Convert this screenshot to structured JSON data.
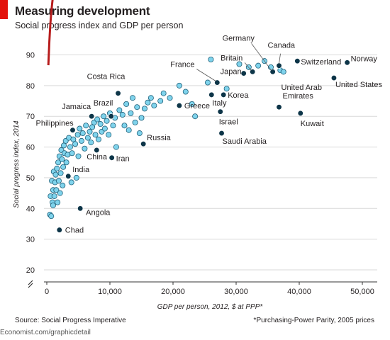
{
  "header": {
    "title": "Measuring development",
    "subtitle": "Social progress index and GDP per person"
  },
  "footer": {
    "source": "Source: Social Progress Imperative",
    "note": "*Purchasing-Power Parity, 2005 prices",
    "site": "Economist.com/graphicdetail"
  },
  "colors": {
    "accent": "#e3120b",
    "trend": "#b71c1c",
    "point_fill": "#7fd3ec",
    "point_stroke": "#1f5f78",
    "highlight": "#0d3548",
    "grid": "#d9d9d9"
  },
  "chart_data": {
    "type": "scatter",
    "xlabel": "GDP per person, 2012, $ at PPP*",
    "ylabel": "Social progress index, 2014",
    "xlim": [
      0,
      52000
    ],
    "ylim": [
      20,
      90
    ],
    "x_ticks": [
      0,
      10000,
      20000,
      30000,
      40000,
      50000
    ],
    "x_tick_labels": [
      "0",
      "10,000",
      "20,000",
      "30,000",
      "40,000",
      "50,000"
    ],
    "y_ticks": [
      20,
      30,
      40,
      50,
      60,
      70,
      80,
      90
    ],
    "y_tick_labels": [
      "20",
      "30",
      "40",
      "50",
      "60",
      "70",
      "80",
      "90"
    ],
    "y_axis_break": true,
    "grid": true,
    "trend": {
      "type": "logarithmic",
      "intercept": -4.5,
      "slope": 38.0
    },
    "labeled_points": [
      {
        "label": "Chad",
        "x": 2000,
        "y": 33
      },
      {
        "label": "Angola",
        "x": 5300,
        "y": 40
      },
      {
        "label": "India",
        "x": 3400,
        "y": 50.5
      },
      {
        "label": "China",
        "x": 7900,
        "y": 59
      },
      {
        "label": "Iran",
        "x": 10300,
        "y": 56.5
      },
      {
        "label": "Philippines",
        "x": 4100,
        "y": 65.5
      },
      {
        "label": "Jamaica",
        "x": 7100,
        "y": 70
      },
      {
        "label": "Brazil",
        "x": 10200,
        "y": 70
      },
      {
        "label": "Costa Rica",
        "x": 11300,
        "y": 77.5
      },
      {
        "label": "Russia",
        "x": 15300,
        "y": 61
      },
      {
        "label": "Greece",
        "x": 21000,
        "y": 73.5
      },
      {
        "label": "France",
        "x": 27000,
        "y": 81
      },
      {
        "label": "Italy",
        "x": 26100,
        "y": 77
      },
      {
        "label": "Korea",
        "x": 28000,
        "y": 77
      },
      {
        "label": "Israel",
        "x": 27500,
        "y": 71.5
      },
      {
        "label": "Saudi Arabia",
        "x": 27700,
        "y": 64.5
      },
      {
        "label": "Japan",
        "x": 31200,
        "y": 84
      },
      {
        "label": "Britain",
        "x": 32600,
        "y": 84.5
      },
      {
        "label": "Germany",
        "x": 35800,
        "y": 84.5
      },
      {
        "label": "Canada",
        "x": 36800,
        "y": 86.5
      },
      {
        "label": "Switzerland",
        "x": 39700,
        "y": 88
      },
      {
        "label": "United Arab Emirates",
        "x": 36800,
        "y": 73
      },
      {
        "label": "Kuwait",
        "x": 40200,
        "y": 71
      },
      {
        "label": "United States",
        "x": 45500,
        "y": 82.5
      },
      {
        "label": "Norway",
        "x": 47600,
        "y": 87.5
      }
    ],
    "points": [
      {
        "x": 500,
        "y": 38
      },
      {
        "x": 600,
        "y": 44
      },
      {
        "x": 700,
        "y": 37.5
      },
      {
        "x": 800,
        "y": 49
      },
      {
        "x": 900,
        "y": 42
      },
      {
        "x": 1000,
        "y": 46
      },
      {
        "x": 1000,
        "y": 41
      },
      {
        "x": 1100,
        "y": 52
      },
      {
        "x": 1200,
        "y": 44
      },
      {
        "x": 1300,
        "y": 48.5
      },
      {
        "x": 1400,
        "y": 51
      },
      {
        "x": 1500,
        "y": 46
      },
      {
        "x": 1600,
        "y": 53
      },
      {
        "x": 1700,
        "y": 42
      },
      {
        "x": 1800,
        "y": 55
      },
      {
        "x": 1900,
        "y": 49
      },
      {
        "x": 2000,
        "y": 57
      },
      {
        "x": 2100,
        "y": 45
      },
      {
        "x": 2200,
        "y": 51.5
      },
      {
        "x": 2300,
        "y": 59
      },
      {
        "x": 2400,
        "y": 56
      },
      {
        "x": 2500,
        "y": 47.5
      },
      {
        "x": 2600,
        "y": 53.5
      },
      {
        "x": 2700,
        "y": 60.5
      },
      {
        "x": 2800,
        "y": 58
      },
      {
        "x": 3000,
        "y": 62
      },
      {
        "x": 3100,
        "y": 55
      },
      {
        "x": 3300,
        "y": 57.5
      },
      {
        "x": 3500,
        "y": 63
      },
      {
        "x": 3700,
        "y": 60
      },
      {
        "x": 3900,
        "y": 48.5
      },
      {
        "x": 4000,
        "y": 58
      },
      {
        "x": 4200,
        "y": 62.5
      },
      {
        "x": 4500,
        "y": 61
      },
      {
        "x": 4700,
        "y": 50
      },
      {
        "x": 4900,
        "y": 64
      },
      {
        "x": 5000,
        "y": 57
      },
      {
        "x": 5200,
        "y": 66
      },
      {
        "x": 5500,
        "y": 62
      },
      {
        "x": 5700,
        "y": 64.5
      },
      {
        "x": 6000,
        "y": 59.5
      },
      {
        "x": 6200,
        "y": 67
      },
      {
        "x": 6500,
        "y": 63
      },
      {
        "x": 6800,
        "y": 65
      },
      {
        "x": 7000,
        "y": 61.5
      },
      {
        "x": 7200,
        "y": 66.5
      },
      {
        "x": 7500,
        "y": 68
      },
      {
        "x": 7700,
        "y": 64
      },
      {
        "x": 8000,
        "y": 69
      },
      {
        "x": 8200,
        "y": 62.5
      },
      {
        "x": 8500,
        "y": 67.5
      },
      {
        "x": 8700,
        "y": 65
      },
      {
        "x": 9000,
        "y": 70
      },
      {
        "x": 9200,
        "y": 66
      },
      {
        "x": 9500,
        "y": 68.5
      },
      {
        "x": 9800,
        "y": 64
      },
      {
        "x": 10000,
        "y": 71
      },
      {
        "x": 10500,
        "y": 67
      },
      {
        "x": 10800,
        "y": 69.5
      },
      {
        "x": 11000,
        "y": 60
      },
      {
        "x": 11500,
        "y": 72
      },
      {
        "x": 12000,
        "y": 70.5
      },
      {
        "x": 12300,
        "y": 67
      },
      {
        "x": 12600,
        "y": 74
      },
      {
        "x": 13000,
        "y": 65.5
      },
      {
        "x": 13300,
        "y": 71
      },
      {
        "x": 13600,
        "y": 76
      },
      {
        "x": 14000,
        "y": 68
      },
      {
        "x": 14300,
        "y": 73
      },
      {
        "x": 14700,
        "y": 64.5
      },
      {
        "x": 15000,
        "y": 69.5
      },
      {
        "x": 15500,
        "y": 72.5
      },
      {
        "x": 16000,
        "y": 74.5
      },
      {
        "x": 16500,
        "y": 76
      },
      {
        "x": 17000,
        "y": 73.5
      },
      {
        "x": 18000,
        "y": 75
      },
      {
        "x": 18500,
        "y": 77.5
      },
      {
        "x": 19500,
        "y": 76
      },
      {
        "x": 21000,
        "y": 80
      },
      {
        "x": 22000,
        "y": 78
      },
      {
        "x": 23000,
        "y": 74
      },
      {
        "x": 23500,
        "y": 70
      },
      {
        "x": 25500,
        "y": 81
      },
      {
        "x": 26000,
        "y": 88.5
      },
      {
        "x": 28500,
        "y": 79
      },
      {
        "x": 30500,
        "y": 87
      },
      {
        "x": 32000,
        "y": 86
      },
      {
        "x": 33500,
        "y": 86.5
      },
      {
        "x": 34500,
        "y": 88
      },
      {
        "x": 35500,
        "y": 86
      },
      {
        "x": 37000,
        "y": 85
      },
      {
        "x": 37500,
        "y": 84.5
      }
    ]
  }
}
